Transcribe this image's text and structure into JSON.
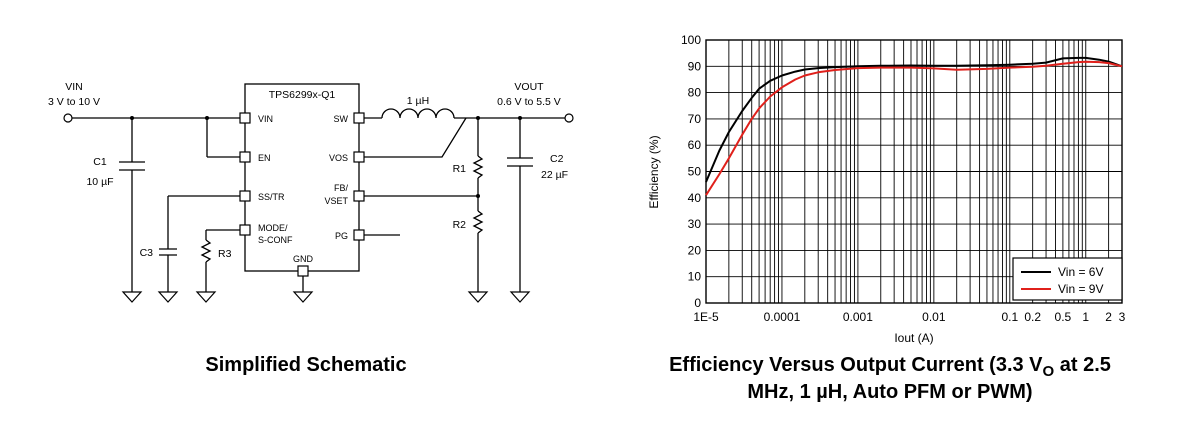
{
  "schematic": {
    "caption": "Simplified Schematic",
    "ic_name": "TPS6299x-Q1",
    "vin_label": "VIN",
    "vin_range": "3 V to 10 V",
    "vout_label": "VOUT",
    "vout_range": "0.6 V to 5.5 V",
    "inductor_label": "1 µH",
    "c1_name": "C1",
    "c1_value": "10 µF",
    "c2_name": "C2",
    "c2_value": "22 µF",
    "c3_name": "C3",
    "r1_name": "R1",
    "r2_name": "R2",
    "r3_name": "R3",
    "pins": {
      "vin": "VIN",
      "en": "EN",
      "sstr": "SS/TR",
      "mode_line1": "MODE/",
      "mode_line2": "S-CONF",
      "sw": "SW",
      "vos": "VOS",
      "fb_line1": "FB/",
      "fb_line2": "VSET",
      "pg": "PG",
      "gnd": "GND"
    }
  },
  "chart_data": {
    "type": "line",
    "title_line1": "Efficiency Versus Output Current (3.3 V",
    "title_sub": "O",
    "title_line1_end": " at 2.5",
    "title_line2": "MHz, 1 µH, Auto PFM or PWM)",
    "xlabel": "Iout (A)",
    "ylabel": "Efficiency (%)",
    "xscale": "log",
    "xlim": [
      1e-05,
      3
    ],
    "ylim": [
      0,
      100
    ],
    "yticks": [
      0,
      10,
      20,
      30,
      40,
      50,
      60,
      70,
      80,
      90,
      100
    ],
    "xtick_labels": [
      {
        "v": 1e-05,
        "label": "1E-5"
      },
      {
        "v": 0.0001,
        "label": "0.0001"
      },
      {
        "v": 0.001,
        "label": "0.001"
      },
      {
        "v": 0.01,
        "label": "0.01"
      },
      {
        "v": 0.1,
        "label": "0.1"
      },
      {
        "v": 0.2,
        "label": "0.2"
      },
      {
        "v": 0.5,
        "label": "0.5"
      },
      {
        "v": 1,
        "label": "1"
      },
      {
        "v": 2,
        "label": "2"
      },
      {
        "v": 3,
        "label": "3"
      }
    ],
    "grid": true,
    "legend_position": "bottom-right",
    "series": [
      {
        "name": "Vin = 6V",
        "color": "#000000",
        "points": [
          [
            1e-05,
            46
          ],
          [
            1.5e-05,
            58
          ],
          [
            2e-05,
            65
          ],
          [
            3e-05,
            73
          ],
          [
            4e-05,
            78
          ],
          [
            5e-05,
            81.5
          ],
          [
            7e-05,
            84.5
          ],
          [
            0.0001,
            86.5
          ],
          [
            0.00015,
            88
          ],
          [
            0.0002,
            88.8
          ],
          [
            0.0003,
            89.3
          ],
          [
            0.0005,
            89.7
          ],
          [
            0.001,
            90
          ],
          [
            0.002,
            90.2
          ],
          [
            0.005,
            90.3
          ],
          [
            0.01,
            90.2
          ],
          [
            0.02,
            90.2
          ],
          [
            0.05,
            90.4
          ],
          [
            0.1,
            90.6
          ],
          [
            0.2,
            91
          ],
          [
            0.3,
            91.4
          ],
          [
            0.5,
            93
          ],
          [
            0.8,
            93.2
          ],
          [
            1,
            93.2
          ],
          [
            1.5,
            92.5
          ],
          [
            2,
            91.8
          ],
          [
            3,
            90
          ]
        ]
      },
      {
        "name": "Vin = 9V",
        "color": "#e0201b",
        "points": [
          [
            1e-05,
            41
          ],
          [
            1.5e-05,
            49
          ],
          [
            2e-05,
            55
          ],
          [
            3e-05,
            64
          ],
          [
            4e-05,
            70
          ],
          [
            5e-05,
            74
          ],
          [
            7e-05,
            78.5
          ],
          [
            0.0001,
            82
          ],
          [
            0.00015,
            85
          ],
          [
            0.0002,
            86.5
          ],
          [
            0.0003,
            87.7
          ],
          [
            0.0005,
            88.6
          ],
          [
            0.001,
            89.3
          ],
          [
            0.002,
            89.5
          ],
          [
            0.005,
            89.5
          ],
          [
            0.01,
            89.2
          ],
          [
            0.02,
            88.7
          ],
          [
            0.05,
            89
          ],
          [
            0.1,
            89.5
          ],
          [
            0.2,
            89.8
          ],
          [
            0.3,
            90.2
          ],
          [
            0.5,
            91
          ],
          [
            0.8,
            91.6
          ],
          [
            1,
            91.7
          ],
          [
            1.5,
            91.6
          ],
          [
            2,
            91.2
          ],
          [
            3,
            90
          ]
        ]
      }
    ]
  }
}
